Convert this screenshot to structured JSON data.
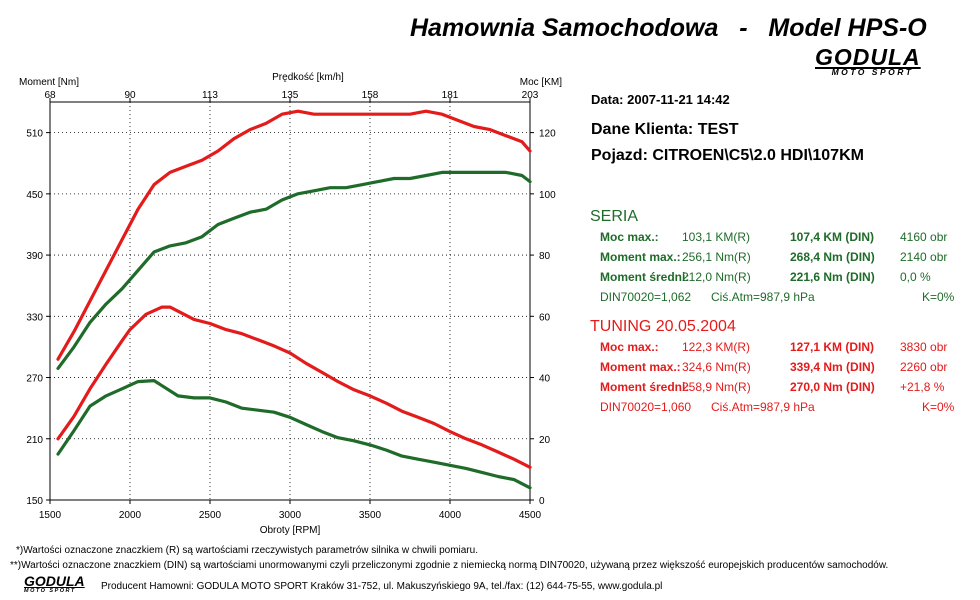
{
  "title": "Hamownia Samochodowa   -   Model HPS-O",
  "logo": {
    "text": "GODULA",
    "sub": "MOTO SPORT"
  },
  "chart_data": {
    "type": "line",
    "xlabel": "Obroty [RPM]",
    "ylabel_left": "Moment [Nm]",
    "ylabel_right": "Moc [KM]",
    "xlabel_top": "Prędkość [km/h]",
    "xlim": [
      1500,
      4500
    ],
    "ylim_left": [
      150,
      540
    ],
    "ylim_right": [
      0,
      130
    ],
    "x_ticks": [
      1500,
      2000,
      2500,
      3000,
      3500,
      4000,
      4500
    ],
    "y_left_ticks": [
      150,
      210,
      270,
      330,
      390,
      450,
      510
    ],
    "y_right_ticks": [
      0,
      20,
      40,
      60,
      80,
      100,
      120
    ],
    "top_ticks": [
      "68",
      "90",
      "113",
      "135",
      "158",
      "181",
      "203"
    ],
    "grid": true,
    "series": [
      {
        "color": "#e31b1b",
        "axis": "left",
        "x": [
          1550,
          1650,
          1750,
          1850,
          1950,
          2000,
          2100,
          2200,
          2250,
          2300,
          2400,
          2500,
          2600,
          2700,
          2800,
          2900,
          3000,
          3100,
          3200,
          3300,
          3400,
          3500,
          3600,
          3700,
          3800,
          3900,
          4000,
          4100,
          4200,
          4300,
          4400,
          4500
        ],
        "values": [
          210,
          232,
          259,
          283,
          306,
          317,
          332,
          339,
          339,
          335,
          327,
          323,
          317,
          313,
          307,
          301,
          294,
          284,
          275,
          266,
          258,
          252,
          245,
          237,
          231,
          225,
          217,
          210,
          204,
          197,
          190,
          182
        ]
      },
      {
        "color": "#1f6b2a",
        "axis": "left",
        "x": [
          1550,
          1650,
          1750,
          1850,
          1950,
          2050,
          2150,
          2200,
          2300,
          2400,
          2500,
          2600,
          2700,
          2800,
          2900,
          3000,
          3100,
          3200,
          3300,
          3400,
          3500,
          3600,
          3700,
          3800,
          3900,
          4000,
          4100,
          4200,
          4300,
          4400,
          4500
        ],
        "values": [
          195,
          218,
          242,
          252,
          259,
          266,
          267,
          262,
          252,
          250,
          250,
          246,
          240,
          238,
          236,
          231,
          224,
          217,
          211,
          208,
          204,
          199,
          193,
          190,
          187,
          184,
          181,
          177,
          173,
          170,
          162
        ]
      },
      {
        "color": "#e31b1b",
        "axis": "right",
        "x": [
          1550,
          1650,
          1750,
          1850,
          1950,
          2050,
          2150,
          2250,
          2350,
          2450,
          2550,
          2650,
          2750,
          2850,
          2950,
          3050,
          3150,
          3250,
          3350,
          3450,
          3550,
          3650,
          3750,
          3850,
          3950,
          4050,
          4150,
          4250,
          4350,
          4450,
          4500
        ],
        "values": [
          46,
          55,
          65,
          75,
          85,
          95,
          103,
          107,
          109,
          111,
          114,
          118,
          121,
          123,
          126,
          127,
          126,
          126,
          126,
          126,
          126,
          126,
          126,
          127,
          126,
          124,
          122,
          121,
          119,
          117,
          114
        ]
      },
      {
        "color": "#1f6b2a",
        "axis": "right",
        "x": [
          1550,
          1650,
          1750,
          1850,
          1950,
          2050,
          2150,
          2250,
          2350,
          2450,
          2550,
          2650,
          2750,
          2850,
          2950,
          3050,
          3150,
          3250,
          3350,
          3450,
          3550,
          3650,
          3750,
          3850,
          3950,
          4050,
          4150,
          4250,
          4350,
          4450,
          4500
        ],
        "values": [
          43,
          50,
          58,
          64,
          69,
          75,
          81,
          83,
          84,
          86,
          90,
          92,
          94,
          95,
          98,
          100,
          101,
          102,
          102,
          103,
          104,
          105,
          105,
          106,
          107,
          107,
          107,
          107,
          107,
          106,
          104
        ]
      }
    ]
  },
  "info": {
    "date": "Data: 2007-11-21  14:42",
    "client": "Dane Klienta: TEST",
    "vehicle": "Pojazd: CITROEN\\C5\\2.0 HDI\\107KM"
  },
  "seria": {
    "title": "SERIA",
    "rows": [
      {
        "label": "Moc max.:",
        "r": "103,1 KM(R)",
        "din": "107,4 KM (DIN)",
        "extra": "4160 obr"
      },
      {
        "label": "Moment max.:",
        "r": "256,1 Nm(R)",
        "din": "268,4 Nm (DIN)",
        "extra": "2140 obr"
      },
      {
        "label": "Moment średni:",
        "r": "212,0 Nm(R)",
        "din": "221,6 Nm (DIN)",
        "extra": "0,0 %"
      }
    ],
    "din_line": {
      "din": "DIN70020=1,062",
      "atm": "Ciś.Atm=987,9 hPa",
      "k": "K=0%"
    }
  },
  "tuning": {
    "title": "TUNING 20.05.2004",
    "rows": [
      {
        "label": "Moc max.:",
        "r": "122,3 KM(R)",
        "din": "127,1 KM (DIN)",
        "extra": "3830 obr"
      },
      {
        "label": "Moment max.:",
        "r": "324,6 Nm(R)",
        "din": "339,4 Nm (DIN)",
        "extra": "2260 obr"
      },
      {
        "label": "Moment średni:",
        "r": "258,9 Nm(R)",
        "din": "270,0 Nm (DIN)",
        "extra": "+21,8 %"
      }
    ],
    "din_line": {
      "din": "DIN70020=1,060",
      "atm": "Ciś.Atm=987,9 hPa",
      "k": "K=0%"
    }
  },
  "footnotes": {
    "note1": "*)Wartości oznaczone znaczkiem (R) są wartościami rzeczywistych parametrów silnika w chwili pomiaru.",
    "note2": "**)Wartości oznaczone znaczkiem (DIN) są wartościami unormowanymi czyli przeliczonymi zgodnie z niemiecką normą DIN70020, używaną przez większość europejskich producentów samochodów.",
    "producer": "Producent Hamowni: GODULA MOTO SPORT Kraków 31-752, ul. Makuszyńskiego 9A, tel./fax: (12) 644-75-55, www.godula.pl"
  }
}
